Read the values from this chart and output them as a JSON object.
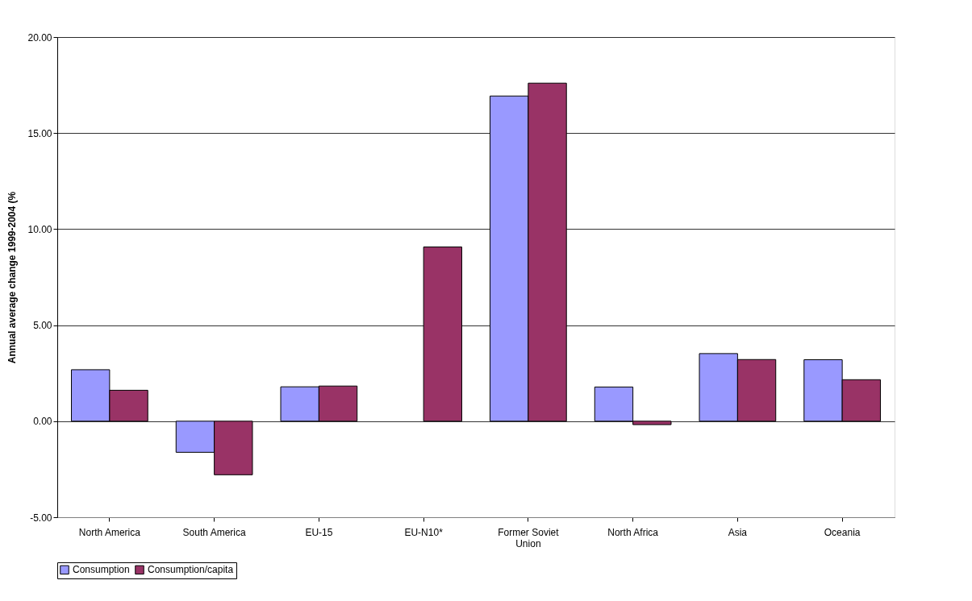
{
  "chart_data": {
    "type": "bar",
    "ylabel": "Annual average change 1999-2004 (%",
    "categories": [
      "North America",
      "South America",
      "EU-15",
      "EU-N10*",
      "Former Soviet Union",
      "North Africa",
      "Asia",
      "Oceania"
    ],
    "series": [
      {
        "name": "Consumption",
        "color": "#9999ff",
        "values": [
          2.68,
          -1.62,
          1.79,
          null,
          16.93,
          1.78,
          3.52,
          3.2
        ]
      },
      {
        "name": "Consumption/capita",
        "color": "#993366",
        "values": [
          1.61,
          -2.79,
          1.83,
          9.07,
          17.6,
          -0.18,
          3.21,
          2.16
        ]
      }
    ],
    "ylim": [
      -5,
      20
    ],
    "yticks": [
      {
        "value": -5,
        "label": "-5.00"
      },
      {
        "value": 0,
        "label": "0.00"
      },
      {
        "value": 5,
        "label": "5.00"
      },
      {
        "value": 10,
        "label": "10.00"
      },
      {
        "value": 15,
        "label": "15.00"
      },
      {
        "value": 20,
        "label": "20.00"
      }
    ],
    "grid": "y",
    "legend": "bottom"
  }
}
